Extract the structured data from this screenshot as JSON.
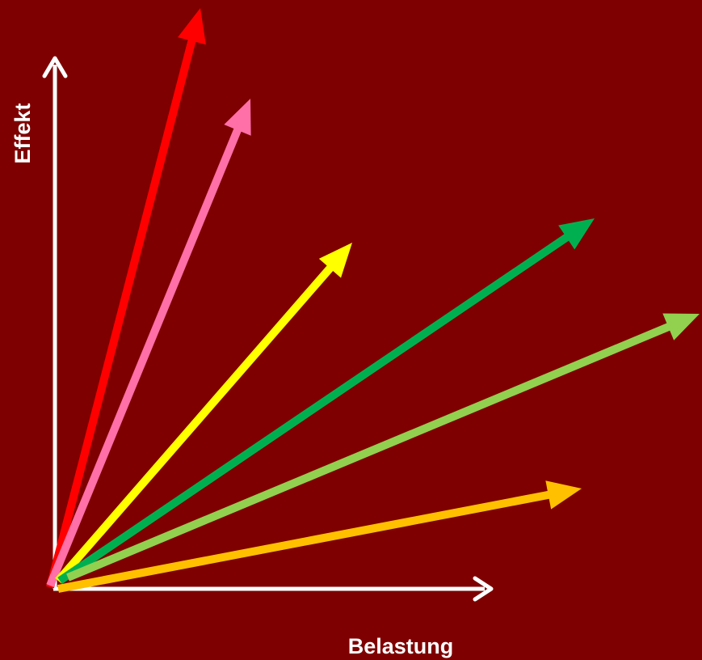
{
  "axes": {
    "x_label": "Belastung",
    "y_label": "Effekt",
    "color": "#ffffff"
  },
  "arrows": [
    {
      "name": "red-arrow",
      "color": "#ff0000"
    },
    {
      "name": "pink-arrow",
      "color": "#ff6fa8"
    },
    {
      "name": "yellow-arrow",
      "color": "#ffff00"
    },
    {
      "name": "dark-green-arrow",
      "color": "#00b050"
    },
    {
      "name": "light-green-arrow",
      "color": "#92d050"
    },
    {
      "name": "orange-arrow",
      "color": "#ffc000"
    }
  ],
  "background": "#7f0000"
}
